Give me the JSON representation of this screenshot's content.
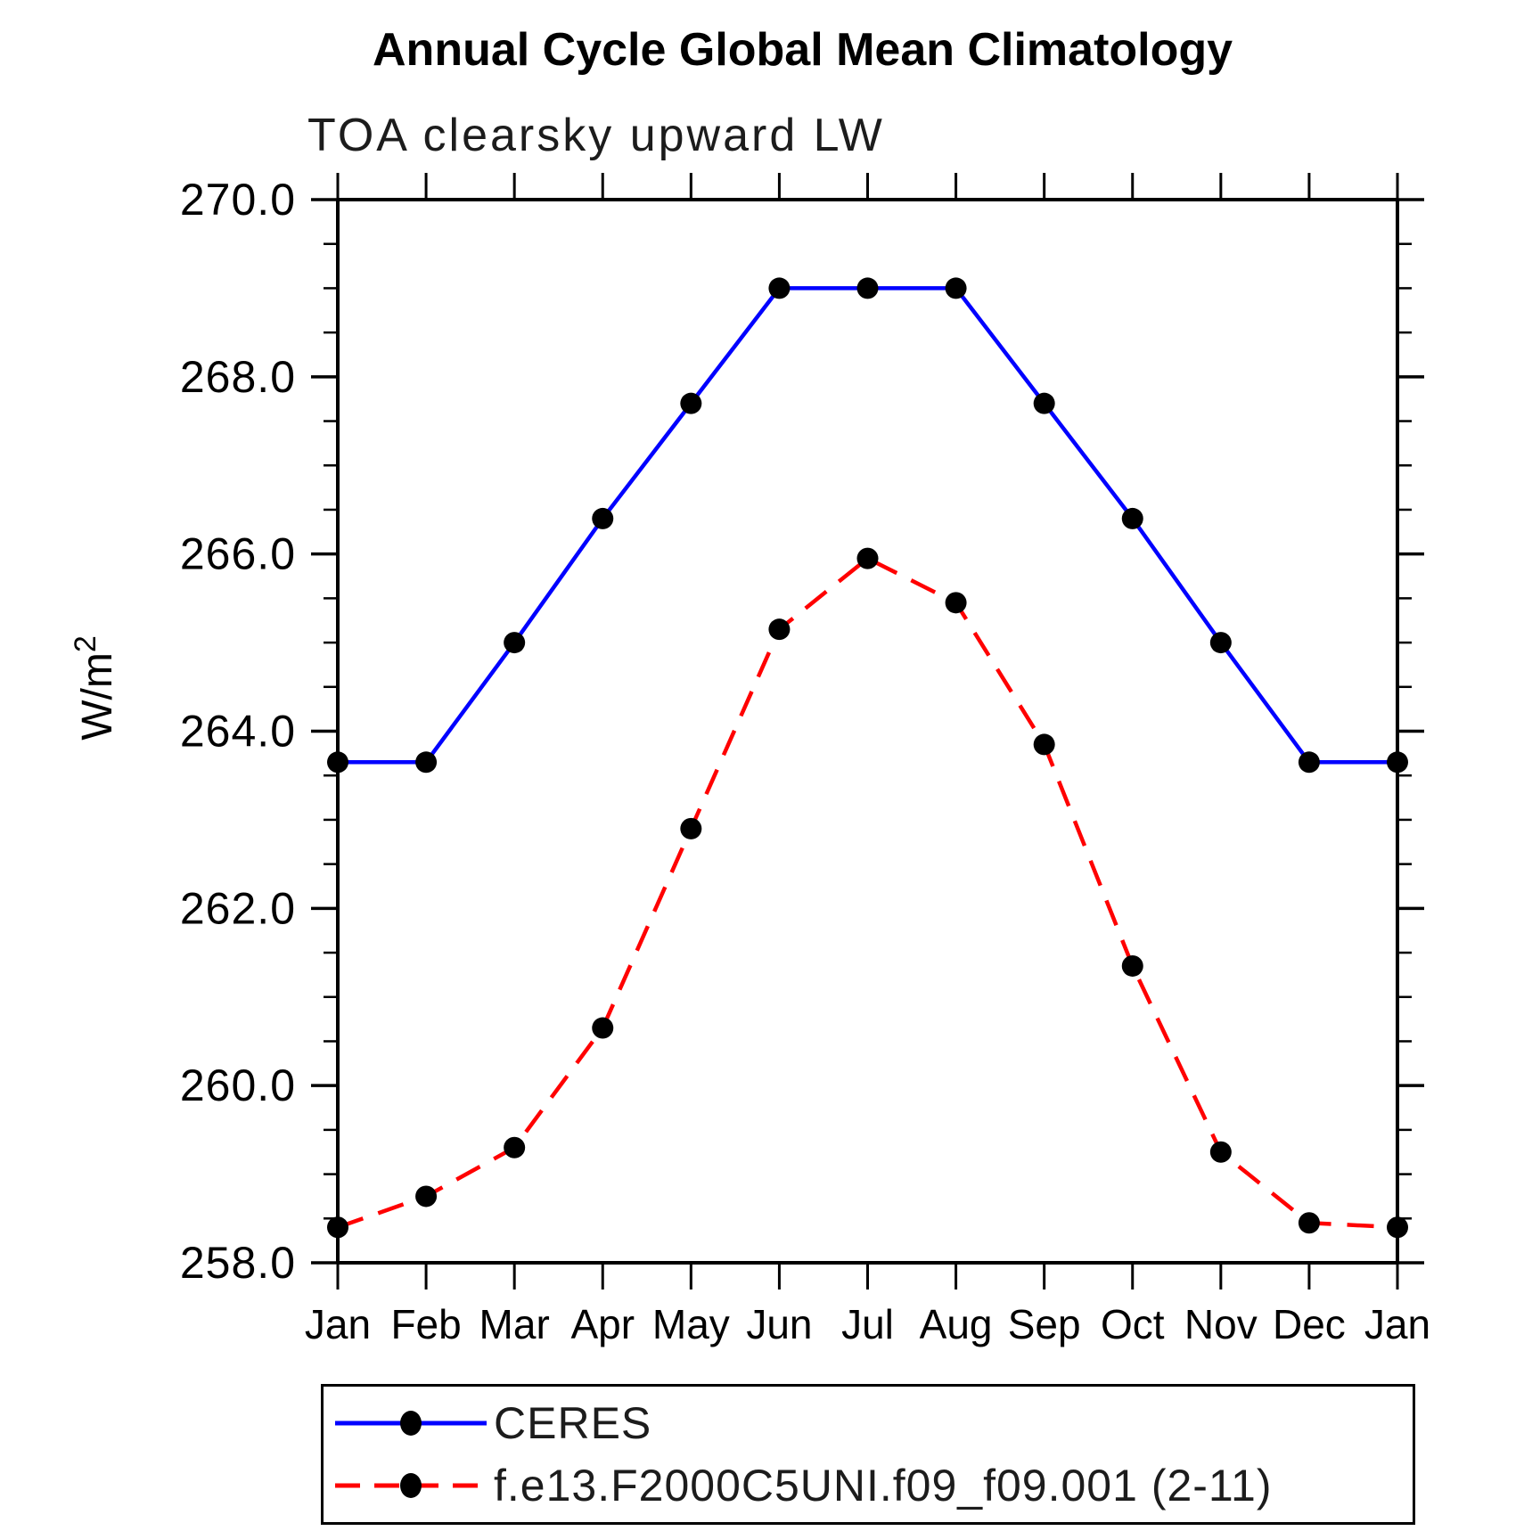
{
  "chart_data": {
    "type": "line",
    "title": "Annual Cycle Global Mean Climatology",
    "subtitle": "TOA clearsky upward LW",
    "ylabel": "W/m²",
    "ylim": [
      258.0,
      270.0
    ],
    "ytick_major_step": 2.0,
    "ytick_minor_step": 0.5,
    "ytick_values": [
      258,
      260,
      262,
      264,
      266,
      268,
      270
    ],
    "ytick_labels": [
      "258.0",
      "260.0",
      "262.0",
      "264.0",
      "266.0",
      "268.0",
      "270.0"
    ],
    "categories": [
      "Jan",
      "Feb",
      "Mar",
      "Apr",
      "May",
      "Jun",
      "Jul",
      "Aug",
      "Sep",
      "Oct",
      "Nov",
      "Dec",
      "Jan"
    ],
    "grid": false,
    "marker": {
      "shape": "circle",
      "color": "#000000"
    },
    "series": [
      {
        "name": "CERES",
        "color": "#0000ff",
        "line_style": "solid",
        "values": [
          263.65,
          263.65,
          265.0,
          266.4,
          267.7,
          269.0,
          269.0,
          269.0,
          267.7,
          266.4,
          265.0,
          263.65,
          263.65
        ]
      },
      {
        "name": "f.e13.F2000C5UNI.f09_f09.001 (2-11)",
        "color": "#ff0000",
        "line_style": "dashed",
        "values": [
          258.4,
          258.75,
          259.3,
          260.65,
          262.9,
          265.15,
          265.95,
          265.45,
          263.85,
          261.35,
          259.25,
          258.45,
          258.4
        ]
      }
    ],
    "legend_position": "bottom-left"
  },
  "colors": {
    "axis": "#000000",
    "text": "#000000",
    "background": "#ffffff"
  }
}
